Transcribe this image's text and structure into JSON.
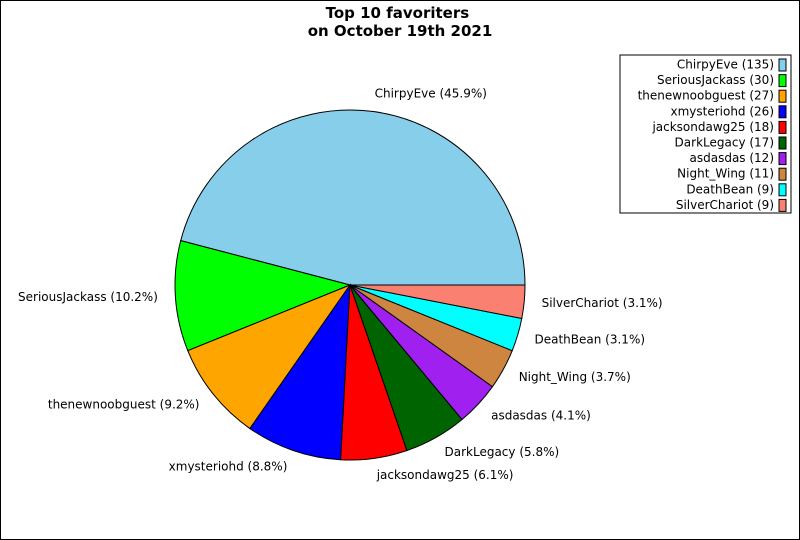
{
  "chart_data": {
    "type": "pie",
    "title": "Top 10 favoriters\non October 19th 2021",
    "slices": [
      {
        "name": "ChirpyEve",
        "value": 135,
        "color": "#87CEEB",
        "legend": "ChirpyEve (135)",
        "label": "ChirpyEve (45.9%)"
      },
      {
        "name": "SeriousJackass",
        "value": 30,
        "color": "#00FF00",
        "legend": "SeriousJackass (30)",
        "label": "SeriousJackass (10.2%)"
      },
      {
        "name": "thenewnoobguest",
        "value": 27,
        "color": "#FFA500",
        "legend": "thenewnoobguest (27)",
        "label": "thenewnoobguest (9.2%)"
      },
      {
        "name": "xmysteriohd",
        "value": 26,
        "color": "#0000FF",
        "legend": "xmysteriohd (26)",
        "label": "xmysteriohd (8.8%)"
      },
      {
        "name": "jacksondawg25",
        "value": 18,
        "color": "#FF0000",
        "legend": "jacksondawg25 (18)",
        "label": "jacksondawg25 (6.1%)"
      },
      {
        "name": "DarkLegacy",
        "value": 17,
        "color": "#006400",
        "legend": "DarkLegacy (17)",
        "label": "DarkLegacy (5.8%)"
      },
      {
        "name": "asdasdas",
        "value": 12,
        "color": "#A020F0",
        "legend": "asdasdas (12)",
        "label": "asdasdas (4.1%)"
      },
      {
        "name": "Night_Wing",
        "value": 11,
        "color": "#CD853F",
        "legend": "Night_Wing (11)",
        "label": "Night_Wing (3.7%)"
      },
      {
        "name": "DeathBean",
        "value": 9,
        "color": "#00FFFF",
        "legend": "DeathBean (9)",
        "label": "DeathBean (3.1%)"
      },
      {
        "name": "SilverChariot",
        "value": 9,
        "color": "#FA8072",
        "legend": "SilverChariot (9)",
        "label": "SilverChariot (3.1%)"
      }
    ],
    "legend_position": "top-right",
    "start_angle_deg": 0,
    "direction": "counterclockwise"
  }
}
